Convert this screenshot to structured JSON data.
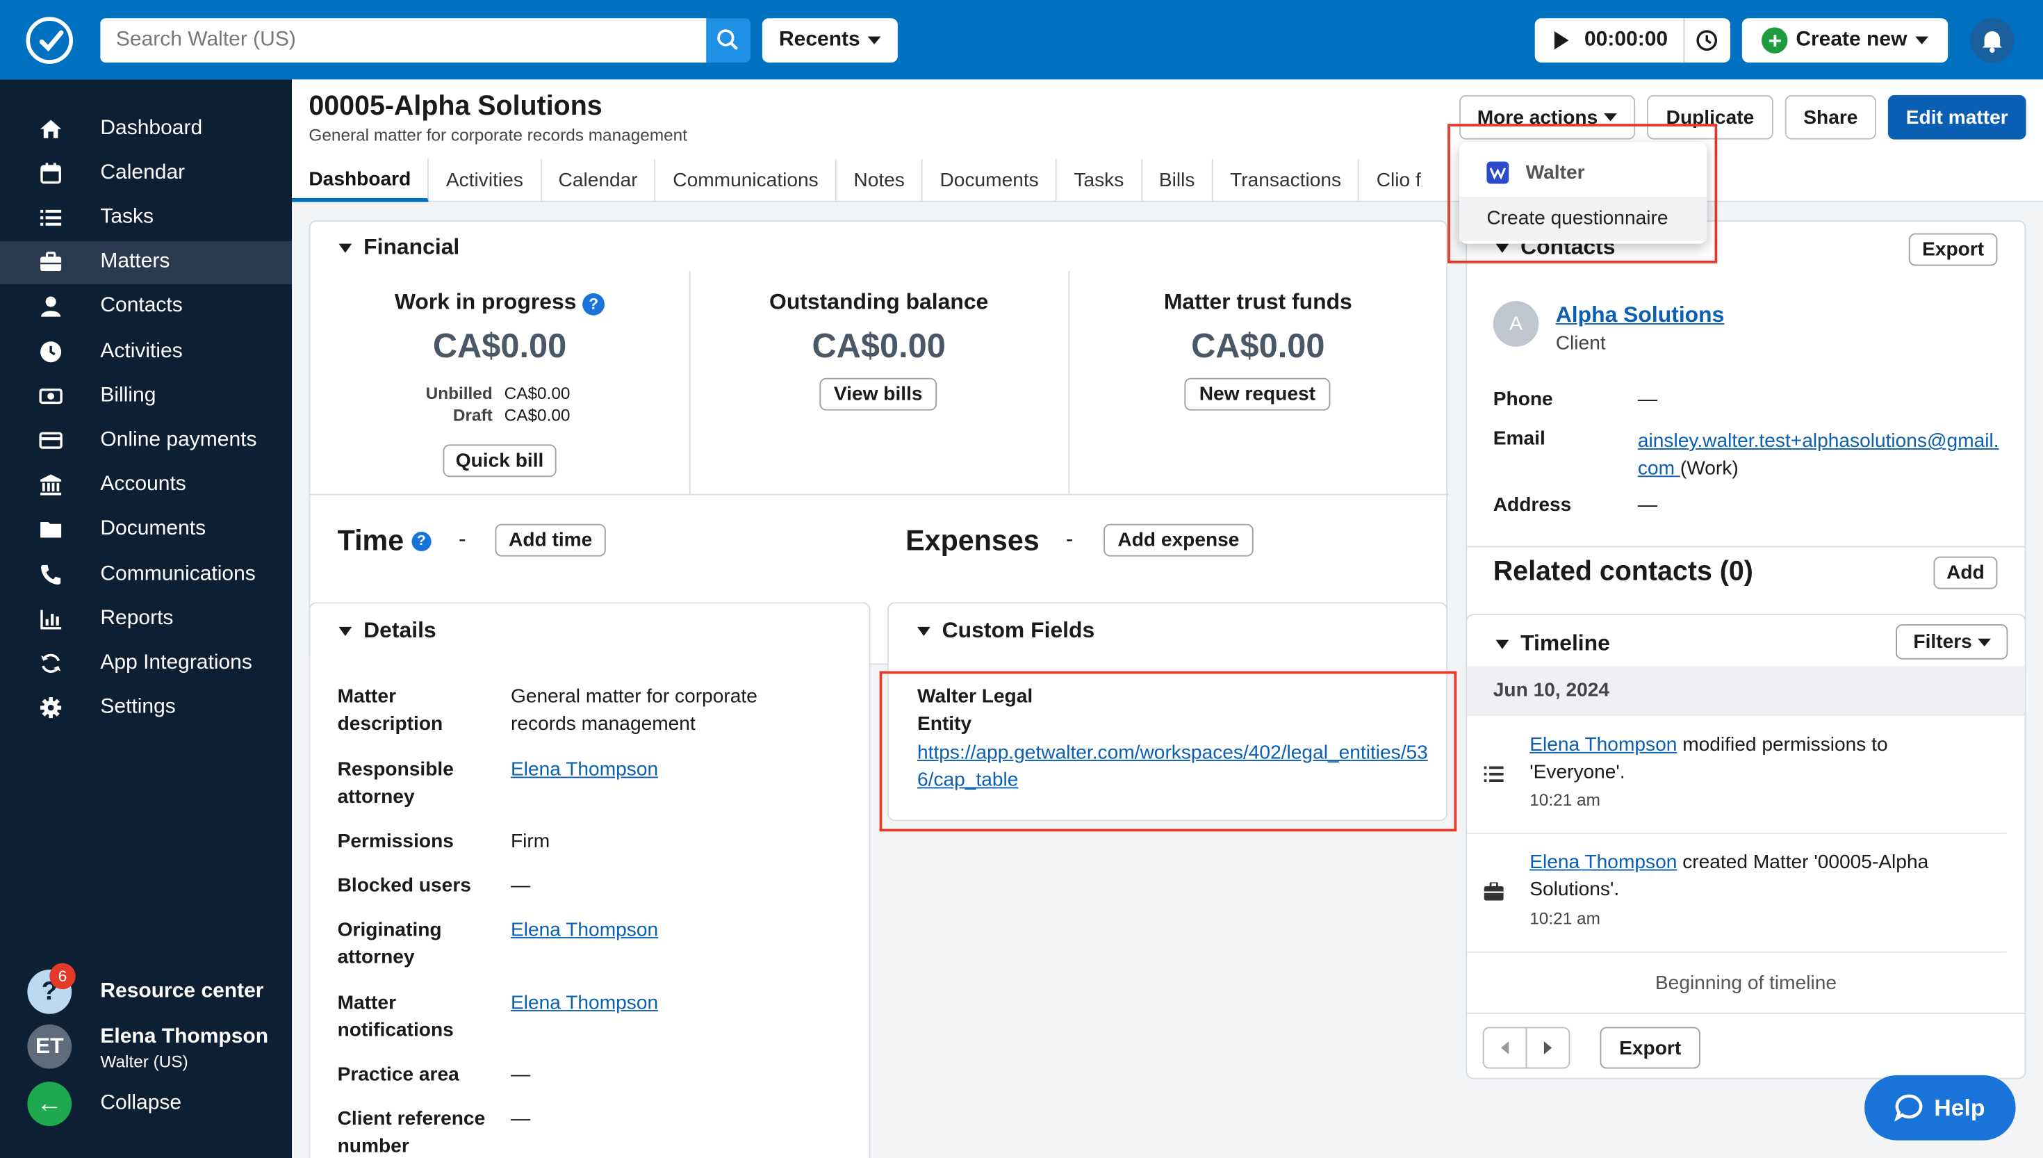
{
  "topbar": {
    "search_placeholder": "Search Walter (US)",
    "recents": "Recents",
    "timer": "00:00:00",
    "create_new": "Create new"
  },
  "sidebar": {
    "items": [
      {
        "label": "Dashboard",
        "icon": "home-icon"
      },
      {
        "label": "Calendar",
        "icon": "calendar-icon"
      },
      {
        "label": "Tasks",
        "icon": "tasks-icon"
      },
      {
        "label": "Matters",
        "icon": "briefcase-icon"
      },
      {
        "label": "Contacts",
        "icon": "person-icon"
      },
      {
        "label": "Activities",
        "icon": "clock-icon"
      },
      {
        "label": "Billing",
        "icon": "billing-icon"
      },
      {
        "label": "Online payments",
        "icon": "card-icon"
      },
      {
        "label": "Accounts",
        "icon": "bank-icon"
      },
      {
        "label": "Documents",
        "icon": "folder-icon"
      },
      {
        "label": "Communications",
        "icon": "phone-icon"
      },
      {
        "label": "Reports",
        "icon": "reports-icon"
      },
      {
        "label": "App Integrations",
        "icon": "sync-icon"
      },
      {
        "label": "Settings",
        "icon": "gear-icon"
      }
    ],
    "resource_center": "Resource center",
    "resource_badge": "6",
    "user_initials": "ET",
    "user_name": "Elena Thompson",
    "user_org": "Walter (US)",
    "collapse": "Collapse"
  },
  "header": {
    "title": "00005-Alpha Solutions",
    "subtitle": "General matter for corporate records management",
    "more_actions": "More actions",
    "duplicate": "Duplicate",
    "share": "Share",
    "edit": "Edit matter"
  },
  "dropdown": {
    "header": "Walter",
    "item": "Create questionnaire"
  },
  "tabs": [
    "Dashboard",
    "Activities",
    "Calendar",
    "Communications",
    "Notes",
    "Documents",
    "Tasks",
    "Bills",
    "Transactions",
    "Clio f"
  ],
  "financial": {
    "heading": "Financial",
    "wip_label": "Work in progress",
    "wip_value": "CA$0.00",
    "unbilled_label": "Unbilled",
    "unbilled_value": "CA$0.00",
    "draft_label": "Draft",
    "draft_value": "CA$0.00",
    "quick_bill": "Quick bill",
    "outstanding_label": "Outstanding balance",
    "outstanding_value": "CA$0.00",
    "view_bills": "View bills",
    "trust_label": "Matter trust funds",
    "trust_value": "CA$0.00",
    "new_request": "New request",
    "time_label": "Time",
    "dash": "-",
    "add_time": "Add time",
    "expenses_label": "Expenses",
    "add_expense": "Add expense"
  },
  "details": {
    "heading": "Details",
    "rows": [
      {
        "label": "Matter description",
        "value": "General matter for corporate records management"
      },
      {
        "label": "Responsible attorney",
        "value": "Elena Thompson"
      },
      {
        "label": "Permissions",
        "value": "Firm"
      },
      {
        "label": "Blocked users",
        "value": "—"
      },
      {
        "label": "Originating attorney",
        "value": "Elena Thompson"
      },
      {
        "label": "Matter notifications",
        "value": "Elena Thompson"
      },
      {
        "label": "Practice area",
        "value": "—"
      },
      {
        "label": "Client reference number",
        "value": "—"
      }
    ]
  },
  "custom_fields": {
    "heading": "Custom Fields",
    "field_label": "Walter Legal Entity",
    "field_value": "https://app.getwalter.com/workspaces/402/legal_entities/536/cap_table"
  },
  "contacts": {
    "heading": "Contacts",
    "export": "Export",
    "avatar": "A",
    "name": "Alpha Solutions",
    "role": "Client",
    "phone_label": "Phone",
    "phone_value": "—",
    "email_label": "Email",
    "email_value": "ainsley.walter.test+alphasolutions@gmail.com ",
    "email_type": "(Work)",
    "address_label": "Address",
    "address_value": "—",
    "related": "Related contacts (0)",
    "add": "Add"
  },
  "timeline": {
    "heading": "Timeline",
    "filters": "Filters",
    "date": "Jun 10, 2024",
    "entries": [
      {
        "user": "Elena Thompson",
        "text": " modified permissions to 'Everyone'.",
        "time": "10:21 am"
      },
      {
        "user": "Elena Thompson",
        "text": " created Matter '00005-Alpha Solutions'.",
        "time": "10:21 am"
      }
    ],
    "beginning": "Beginning of timeline",
    "export": "Export"
  },
  "help": "Help",
  "colors": {
    "topbar": "#0070c0",
    "sidebar": "#0d1f33",
    "primary_button": "#0a5fb4",
    "highlight": "#e53a2a"
  }
}
